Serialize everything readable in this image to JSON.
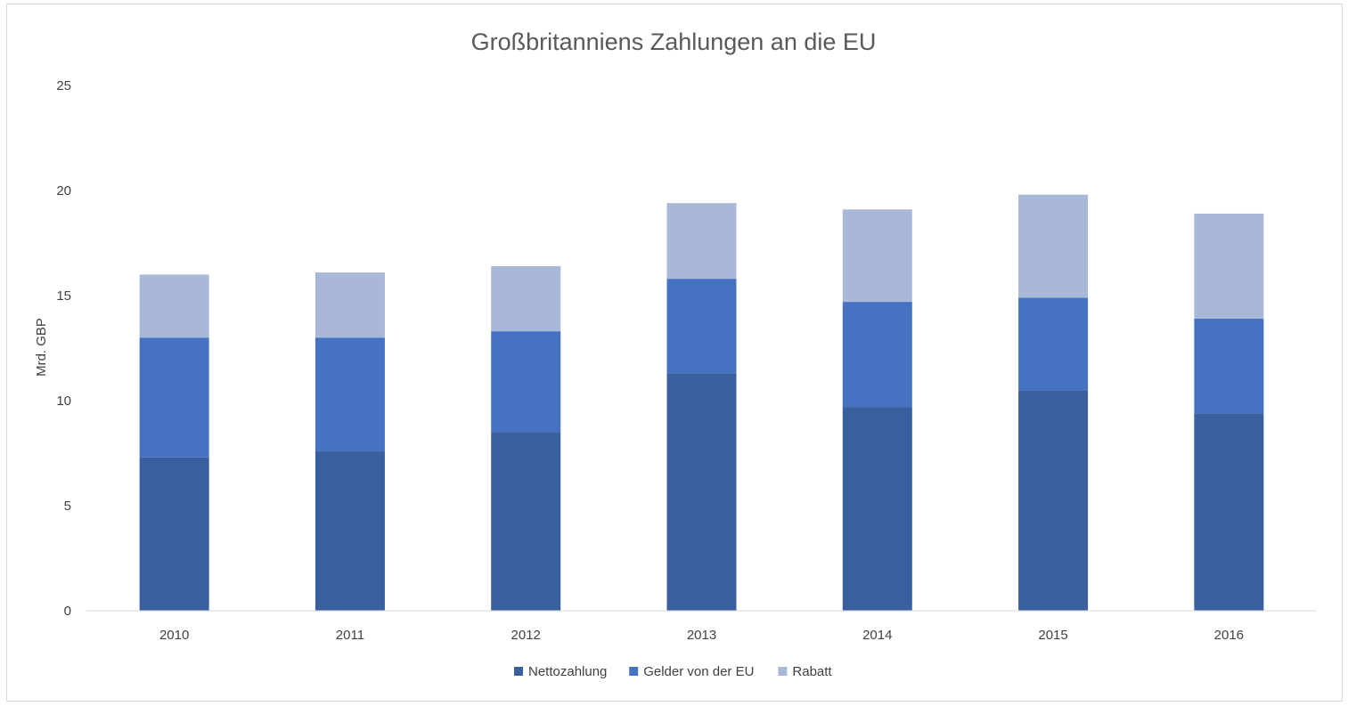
{
  "chart_data": {
    "type": "bar",
    "stacked": true,
    "title": "Großbritanniens Zahlungen an die EU",
    "xlabel": "",
    "ylabel": "Mrd. GBP",
    "ylim": [
      0,
      25
    ],
    "yticks": [
      0,
      5,
      10,
      15,
      20,
      25
    ],
    "grid": false,
    "legend_position": "bottom",
    "categories": [
      "2010",
      "2011",
      "2012",
      "2013",
      "2014",
      "2015",
      "2016"
    ],
    "series": [
      {
        "name": "Nettozahlung",
        "color": "#3a5f9e",
        "values": [
          7.3,
          7.6,
          8.5,
          11.3,
          9.7,
          10.5,
          9.4
        ]
      },
      {
        "name": "Gelder von der EU",
        "color": "#4673c1",
        "values": [
          5.7,
          5.4,
          4.8,
          4.5,
          5.0,
          4.4,
          4.5
        ]
      },
      {
        "name": "Rabatt",
        "color": "#a9b7d9",
        "values": [
          3.0,
          3.1,
          3.1,
          3.6,
          4.4,
          4.9,
          5.0
        ]
      }
    ]
  }
}
